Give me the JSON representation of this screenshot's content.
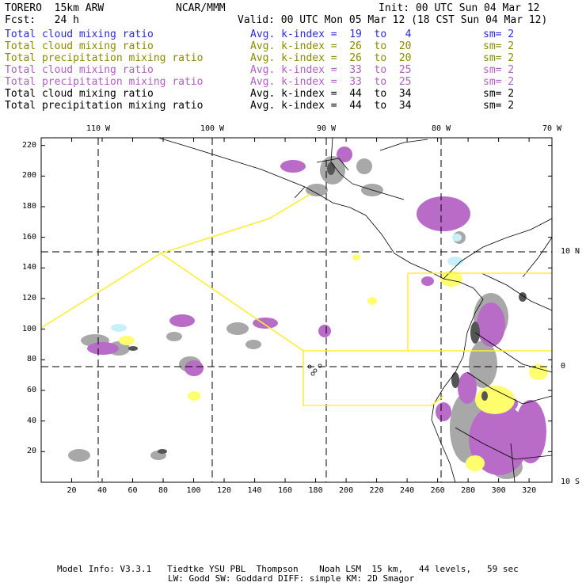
{
  "header": {
    "model": "TORERO  15km ARW",
    "org": "NCAR/MMM",
    "init": "Init: 00 UTC Sun 04 Mar 12",
    "fcst": "Fcst:   24 h",
    "valid": "Valid: 00 UTC Mon 05 Mar 12 (18 CST Sun 04 Mar 12)"
  },
  "legend": [
    {
      "field": "Total cloud mixing ratio",
      "kindex": "Avg. k-index =  19  to   4",
      "sm": "sm= 2",
      "color": "#2a2ad8"
    },
    {
      "field": "Total cloud mixing ratio",
      "kindex": "Avg. k-index =  26  to  20",
      "sm": "sm= 2",
      "color": "#8a8a00"
    },
    {
      "field": "Total precipitation mixing ratio",
      "kindex": "Avg. k-index =  26  to  20",
      "sm": "sm= 2",
      "color": "#8a8a00"
    },
    {
      "field": "Total cloud mixing ratio",
      "kindex": "Avg. k-index =  33  to  25",
      "sm": "sm= 2",
      "color": "#b060c0"
    },
    {
      "field": "Total precipitation mixing ratio",
      "kindex": "Avg. k-index =  33  to  25",
      "sm": "sm= 2",
      "color": "#b060c0"
    },
    {
      "field": "Total cloud mixing ratio",
      "kindex": "Avg. k-index =  44  to  34",
      "sm": "sm= 2",
      "color": "#000000"
    },
    {
      "field": "Total precipitation mixing ratio",
      "kindex": "Avg. k-index =  44  to  34",
      "sm": "sm= 2",
      "color": "#000000"
    }
  ],
  "axes": {
    "lon_labels": [
      "110 W",
      "100 W",
      "90 W",
      "80 W",
      "70 W"
    ],
    "lat_labels": [
      "10 N",
      "0",
      "10 S"
    ],
    "x_ticks": [
      20,
      40,
      60,
      80,
      100,
      120,
      140,
      160,
      180,
      200,
      220,
      240,
      260,
      280,
      300,
      320
    ],
    "y_ticks": [
      20,
      40,
      60,
      80,
      100,
      120,
      140,
      160,
      180,
      200,
      220
    ]
  },
  "footer": {
    "line1": "Model Info: V3.3.1   Tiedtke YSU PBL  Thompson    Noah LSM  15 km,   44 levels,   59 sec",
    "line2": "LW: Godd SW: Goddard DIFF: simple KM: 2D Smagor"
  },
  "colors": {
    "gray": "#a8a8a8",
    "darkgray": "#555555",
    "purple": "#b86cc8",
    "yellow": "#ffff6e",
    "lightblue": "#c8f0f8",
    "domain_line": "#ffee33"
  }
}
